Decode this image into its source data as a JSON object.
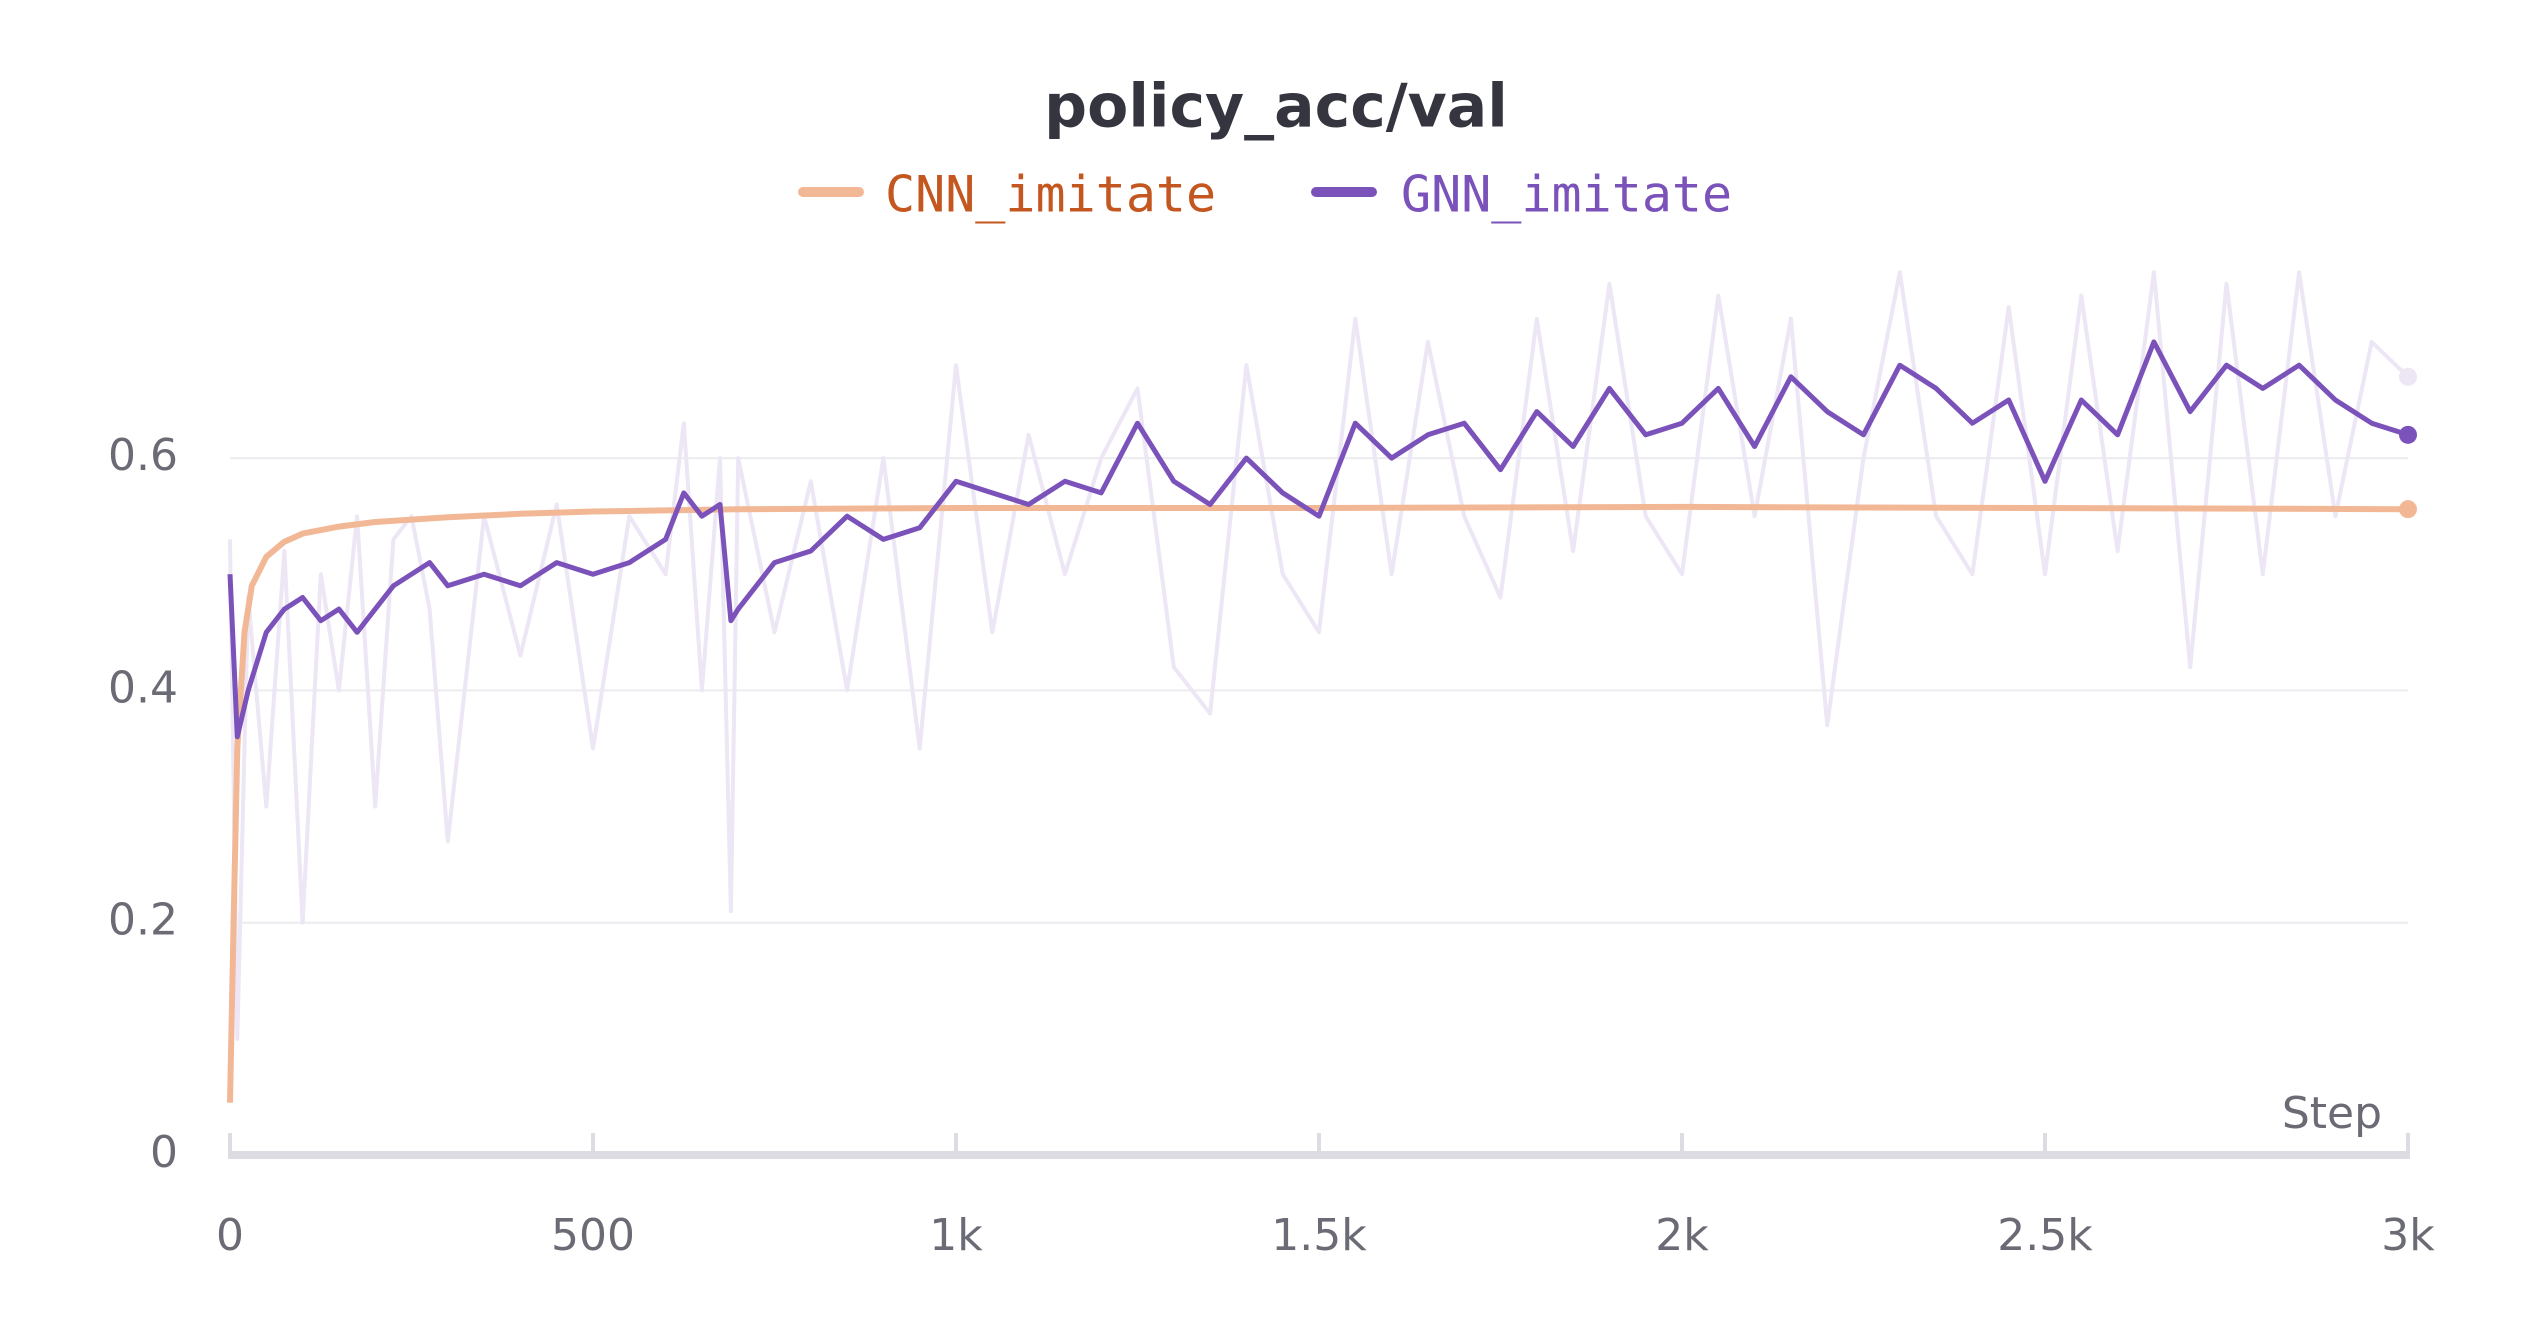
{
  "chart_data": {
    "type": "line",
    "title": "policy_acc/val",
    "x_label": "Step",
    "xlim": [
      0,
      3000
    ],
    "ylim": [
      0,
      0.78
    ],
    "xticks": [
      0,
      500,
      {
        "value": 1000,
        "label": "1k"
      },
      {
        "value": 1500,
        "label": "1.5k"
      },
      {
        "value": 2000,
        "label": "2k"
      },
      {
        "value": 2500,
        "label": "2.5k"
      },
      {
        "value": 3000,
        "label": "3k"
      }
    ],
    "yticks": [
      0,
      0.2,
      0.4,
      0.6
    ],
    "grid": true,
    "series": [
      {
        "color": "#ece6f5",
        "x": [
          0,
          10,
          25,
          50,
          75,
          100,
          125,
          150,
          175,
          200,
          225,
          250,
          275,
          300,
          350,
          400,
          450,
          500,
          550,
          600,
          625,
          650,
          675,
          690,
          700,
          750,
          800,
          850,
          900,
          950,
          1000,
          1050,
          1100,
          1150,
          1200,
          1250,
          1300,
          1350,
          1400,
          1450,
          1500,
          1550,
          1600,
          1650,
          1700,
          1750,
          1800,
          1850,
          1900,
          1950,
          2000,
          2050,
          2100,
          2150,
          2200,
          2250,
          2300,
          2350,
          2400,
          2450,
          2500,
          2550,
          2600,
          2650,
          2700,
          2750,
          2800,
          2850,
          2900,
          2950,
          3000
        ],
        "values": [
          0.53,
          0.1,
          0.48,
          0.3,
          0.52,
          0.2,
          0.5,
          0.4,
          0.55,
          0.3,
          0.53,
          0.55,
          0.47,
          0.27,
          0.55,
          0.43,
          0.56,
          0.35,
          0.55,
          0.5,
          0.63,
          0.4,
          0.6,
          0.21,
          0.6,
          0.45,
          0.58,
          0.4,
          0.6,
          0.35,
          0.68,
          0.45,
          0.62,
          0.5,
          0.6,
          0.66,
          0.42,
          0.38,
          0.68,
          0.5,
          0.45,
          0.72,
          0.5,
          0.7,
          0.55,
          0.48,
          0.72,
          0.52,
          0.75,
          0.55,
          0.5,
          0.74,
          0.55,
          0.72,
          0.37,
          0.6,
          0.76,
          0.55,
          0.5,
          0.73,
          0.5,
          0.74,
          0.52,
          0.76,
          0.42,
          0.75,
          0.5,
          0.76,
          0.55,
          0.7,
          0.67
        ]
      },
      {
        "name": "CNN_imitate",
        "color": "#f2b896",
        "x": [
          0,
          5,
          10,
          20,
          30,
          50,
          75,
          100,
          150,
          200,
          300,
          400,
          500,
          700,
          1000,
          1500,
          2000,
          2500,
          3000
        ],
        "values": [
          0.045,
          0.2,
          0.35,
          0.45,
          0.49,
          0.515,
          0.528,
          0.535,
          0.541,
          0.545,
          0.549,
          0.552,
          0.554,
          0.556,
          0.557,
          0.557,
          0.558,
          0.557,
          0.556
        ]
      },
      {
        "name": "GNN_imitate",
        "color": "#7b52b9",
        "x": [
          0,
          10,
          25,
          50,
          75,
          100,
          125,
          150,
          175,
          200,
          225,
          250,
          275,
          300,
          350,
          400,
          450,
          500,
          550,
          600,
          625,
          650,
          675,
          690,
          700,
          750,
          800,
          850,
          900,
          950,
          1000,
          1050,
          1100,
          1150,
          1200,
          1250,
          1300,
          1350,
          1400,
          1450,
          1500,
          1550,
          1600,
          1650,
          1700,
          1750,
          1800,
          1850,
          1900,
          1950,
          2000,
          2050,
          2100,
          2150,
          2200,
          2250,
          2300,
          2350,
          2400,
          2450,
          2500,
          2550,
          2600,
          2650,
          2700,
          2750,
          2800,
          2850,
          2900,
          2950,
          3000
        ],
        "values": [
          0.5,
          0.36,
          0.4,
          0.45,
          0.47,
          0.48,
          0.46,
          0.47,
          0.45,
          0.47,
          0.49,
          0.5,
          0.51,
          0.49,
          0.5,
          0.49,
          0.51,
          0.5,
          0.51,
          0.53,
          0.57,
          0.55,
          0.56,
          0.46,
          0.47,
          0.51,
          0.52,
          0.55,
          0.53,
          0.54,
          0.58,
          0.57,
          0.56,
          0.58,
          0.57,
          0.63,
          0.58,
          0.56,
          0.6,
          0.57,
          0.55,
          0.63,
          0.6,
          0.62,
          0.63,
          0.59,
          0.64,
          0.61,
          0.66,
          0.62,
          0.63,
          0.66,
          0.61,
          0.67,
          0.64,
          0.62,
          0.68,
          0.66,
          0.63,
          0.65,
          0.58,
          0.65,
          0.62,
          0.7,
          0.64,
          0.68,
          0.66,
          0.68,
          0.65,
          0.63,
          0.62
        ]
      }
    ]
  }
}
